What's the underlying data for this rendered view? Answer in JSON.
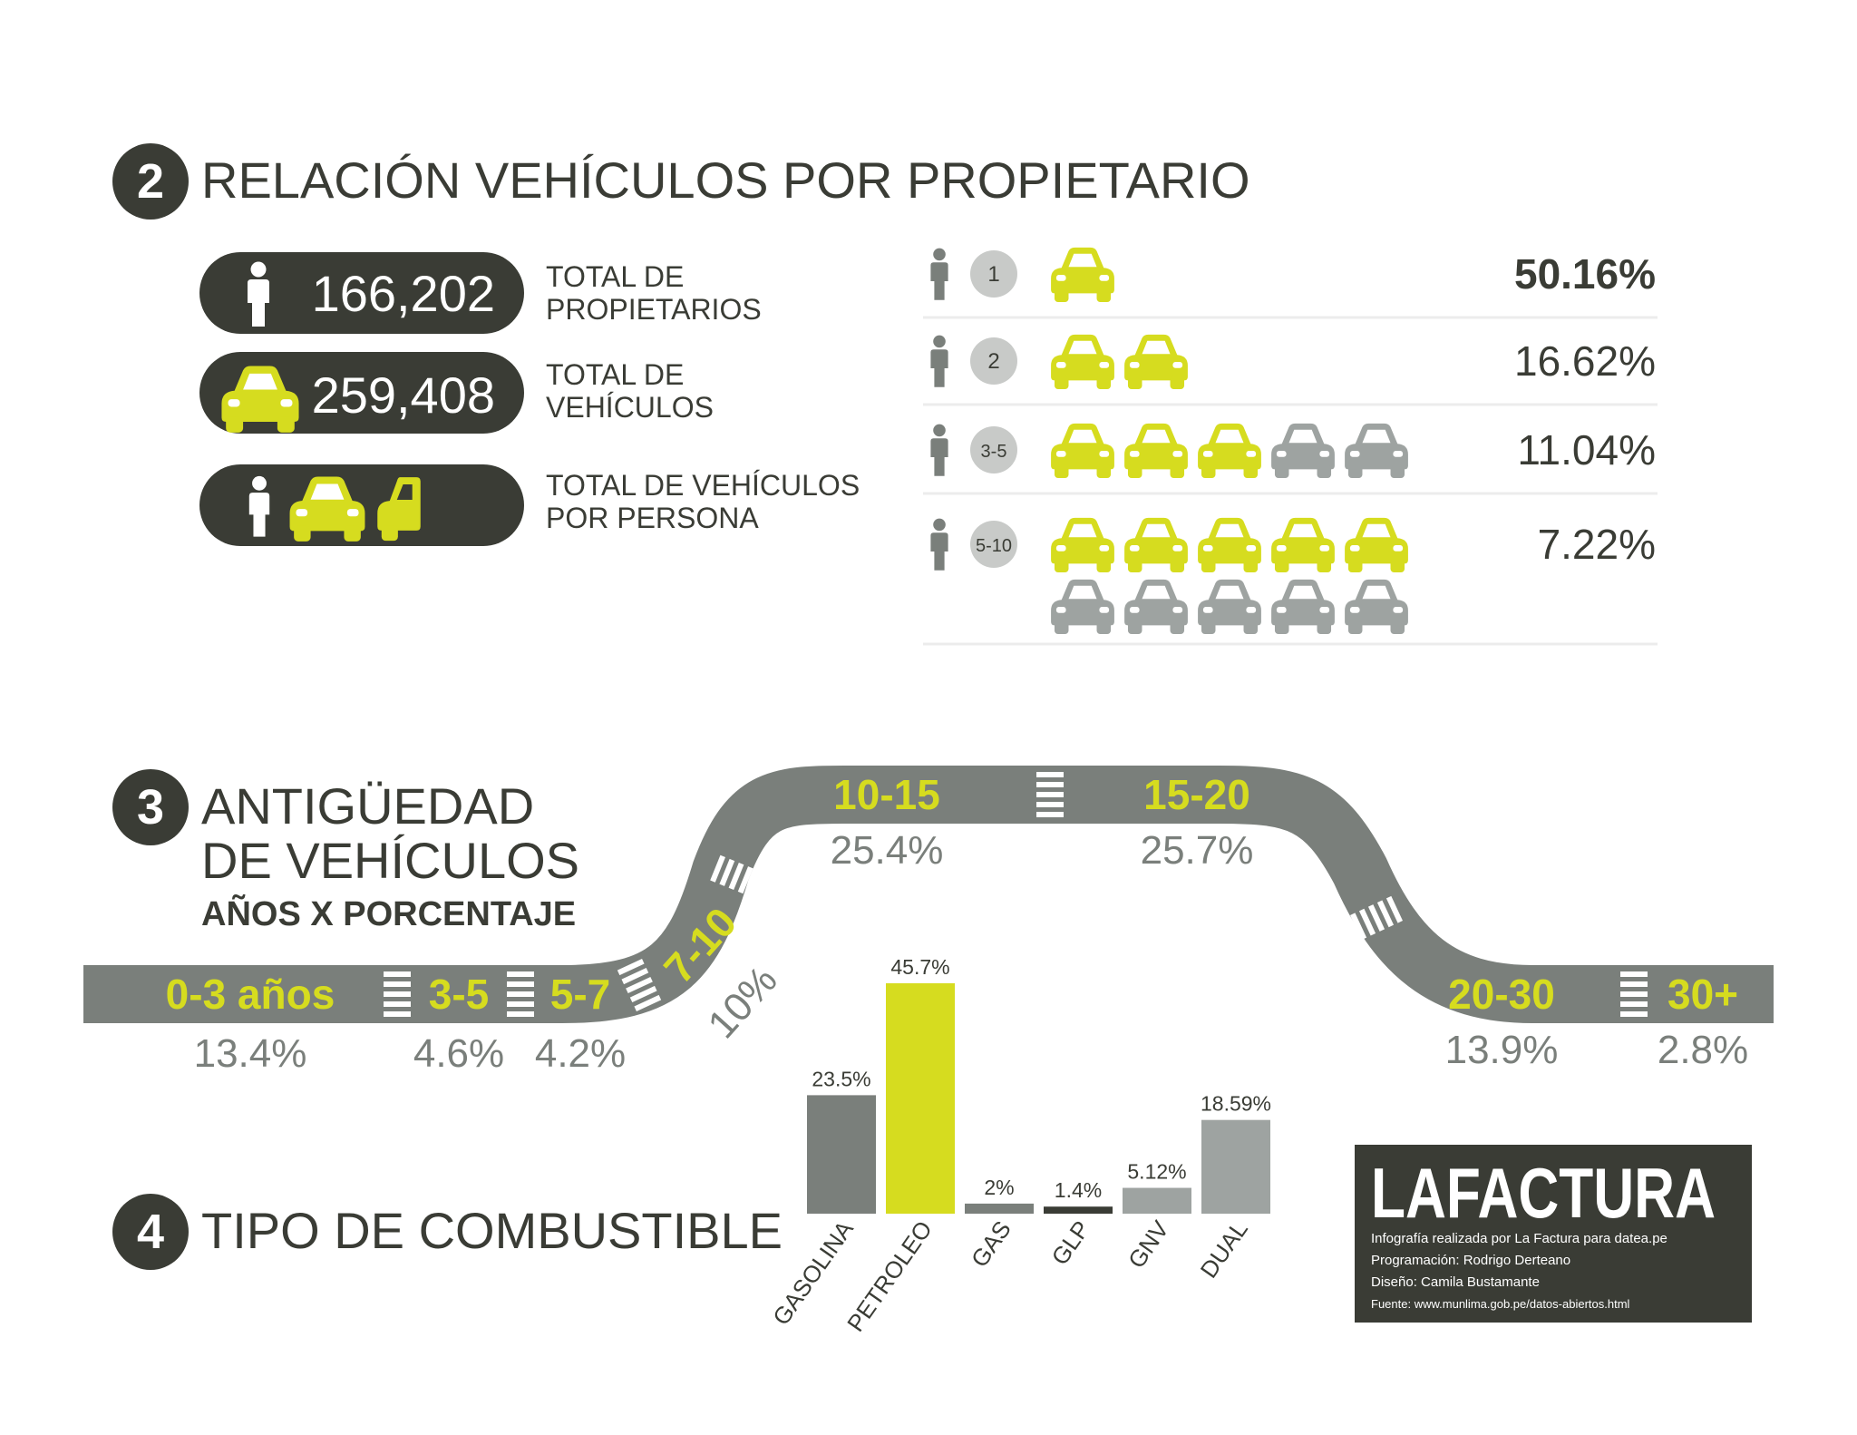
{
  "colors": {
    "dark": "#3a3c35",
    "road": "#7a7f7b",
    "yellow": "#d6dc1f",
    "gray_car": "#9ea3a1",
    "light_gray": "#c8cac8",
    "text_gray": "#7a7f7b"
  },
  "section2": {
    "number": "2",
    "title": "RELACIÓN VEHÍCULOS POR PROPIETARIO",
    "stats": [
      {
        "icon": "person-icon",
        "value": "166,202",
        "label_line1": "TOTAL DE",
        "label_line2": "PROPIETARIOS"
      },
      {
        "icon": "car-icon",
        "value": "259,408",
        "label_line1": "TOTAL DE",
        "label_line2": "VEHÍCULOS"
      },
      {
        "icon": "person-car-icon",
        "value": "",
        "label_line1": "TOTAL DE VEHÍCULOS",
        "label_line2": "POR PERSONA"
      }
    ]
  },
  "section3": {
    "number": "3",
    "title_line1": "ANTIGÜEDAD",
    "title_line2": "DE VEHÍCULOS",
    "subtitle": "AÑOS X PORCENTAJE"
  },
  "section4": {
    "number": "4",
    "title": "TIPO DE COMBUSTIBLE"
  },
  "credits": {
    "brand": "LAFACTURA",
    "lines": [
      "Infografía realizada por La Factura para datea.pe",
      "Programación: Rodrigo Derteano",
      "Diseño: Camila Bustamante",
      "Fuente: www.munlima.gob.pe/datos-abiertos.html"
    ]
  },
  "chart_data": [
    {
      "type": "table",
      "rows": [
        {
          "badge": "1",
          "cars": 1,
          "yellow_cars": 1,
          "percent": 50.16,
          "label": "50.16%"
        },
        {
          "badge": "2",
          "cars": 2,
          "yellow_cars": 2,
          "percent": 16.62,
          "label": "16.62%"
        },
        {
          "badge": "3-5",
          "cars": 5,
          "yellow_cars": 3,
          "percent": 11.04,
          "label": "11.04%"
        },
        {
          "badge": "5-10",
          "cars": 10,
          "yellow_cars": 5,
          "percent": 7.22,
          "label": "7.22%"
        }
      ]
    },
    {
      "type": "bar",
      "categories": [
        "0-3 años",
        "3-5",
        "5-7",
        "7-10",
        "10-15",
        "15-20",
        "20-30",
        "30+"
      ],
      "values": [
        13.4,
        4.6,
        4.2,
        10,
        25.4,
        25.7,
        13.9,
        2.8
      ],
      "labels": [
        "13.4%",
        "4.6%",
        "4.2%",
        "10%",
        "25.4%",
        "25.7%",
        "13.9%",
        "2.8%"
      ]
    },
    {
      "type": "bar",
      "categories": [
        "GASOLINA",
        "PETROLEO",
        "GAS",
        "GLP",
        "GNV",
        "DUAL"
      ],
      "values": [
        23.5,
        45.7,
        2,
        1.4,
        5.12,
        18.59
      ],
      "labels": [
        "23.5%",
        "45.7%",
        "2%",
        "1.4%",
        "5.12%",
        "18.59%"
      ],
      "bar_colors": [
        "#7a7f7b",
        "#d6dc1f",
        "#7a7f7b",
        "#3a3c35",
        "#9ea3a1",
        "#9ea3a1"
      ]
    }
  ]
}
